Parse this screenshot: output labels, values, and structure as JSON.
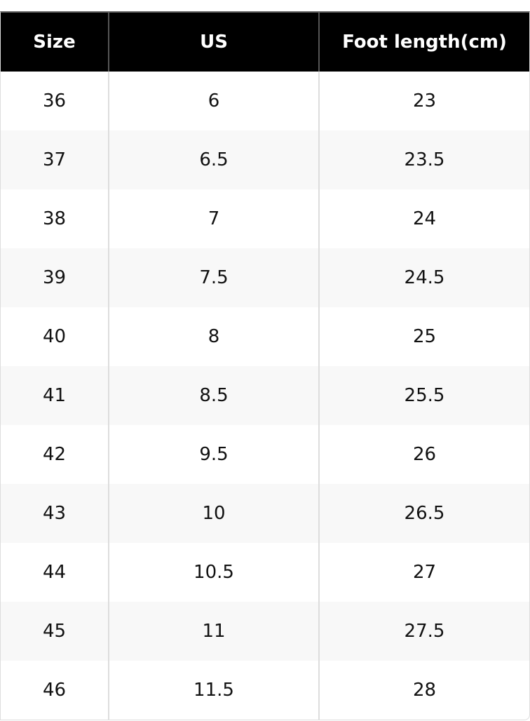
{
  "table": {
    "headers": [
      "Size",
      "US",
      "Foot length(cm)"
    ],
    "rows": [
      [
        "36",
        "6",
        "23"
      ],
      [
        "37",
        "6.5",
        "23.5"
      ],
      [
        "38",
        "7",
        "24"
      ],
      [
        "39",
        "7.5",
        "24.5"
      ],
      [
        "40",
        "8",
        "25"
      ],
      [
        "41",
        "8.5",
        "25.5"
      ],
      [
        "42",
        "9.5",
        "26"
      ],
      [
        "43",
        "10",
        "26.5"
      ],
      [
        "44",
        "10.5",
        "27"
      ],
      [
        "45",
        "11",
        "27.5"
      ],
      [
        "46",
        "11.5",
        "28"
      ]
    ]
  }
}
